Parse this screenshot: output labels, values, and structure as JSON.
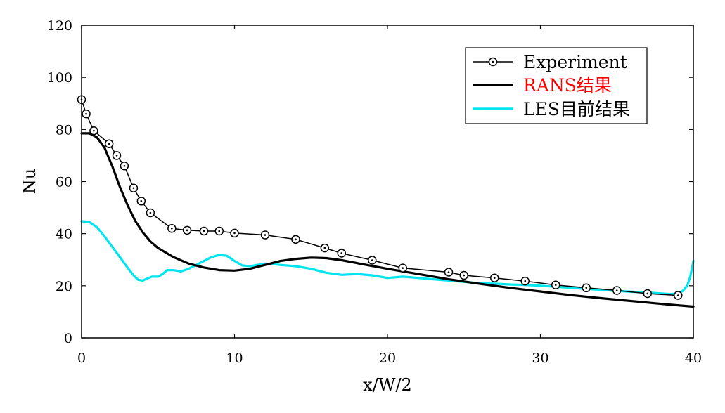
{
  "chart_data": {
    "type": "line",
    "title": "",
    "xlabel": "x/W/2",
    "ylabel": "Nu",
    "xlim": [
      0,
      40
    ],
    "ylim": [
      0,
      120
    ],
    "xticks": [
      "0",
      "10",
      "20",
      "30",
      "40"
    ],
    "yticks": [
      "0",
      "20",
      "40",
      "60",
      "80",
      "100",
      "120"
    ],
    "grid": false,
    "legend_position": "top-right",
    "series": [
      {
        "name": "Experiment",
        "color": "#000000",
        "style": "line-with-circle-markers",
        "x": [
          0,
          0.3,
          0.8,
          1.8,
          2.3,
          2.8,
          3.4,
          3.9,
          4.5,
          5.9,
          6.9,
          8.0,
          9.0,
          10.0,
          12.0,
          14.0,
          15.9,
          17.0,
          19.0,
          21.0,
          24.0,
          25.0,
          27.0,
          29.0,
          31.0,
          33.0,
          35.0,
          37.0,
          39.0
        ],
        "y": [
          91.5,
          86,
          79.5,
          74.5,
          70,
          66,
          57.5,
          52.5,
          48,
          42,
          41.3,
          41,
          41,
          40.2,
          39.5,
          37.8,
          34.5,
          32.5,
          29.8,
          26.8,
          25.2,
          24,
          23,
          21.8,
          20.3,
          19.2,
          18.2,
          17,
          16.3
        ]
      },
      {
        "name": "RANS结果",
        "color": "#000000",
        "label_color": "#ff0000",
        "style": "thick-line",
        "x": [
          0,
          0.5,
          1,
          1.5,
          2,
          2.5,
          3,
          3.5,
          4,
          4.5,
          5,
          6,
          7,
          8,
          9,
          10,
          11,
          12,
          13,
          14,
          15,
          16,
          17,
          18,
          20,
          22,
          24,
          26,
          28,
          30,
          32,
          34,
          36,
          38,
          40
        ],
        "y": [
          78.5,
          78.5,
          77,
          73,
          66,
          58,
          51,
          45,
          40.5,
          37,
          34.5,
          31,
          28.5,
          27,
          26,
          25.8,
          26.5,
          28,
          29.5,
          30.3,
          30.8,
          30.6,
          29.8,
          28.7,
          26.5,
          24.5,
          22.5,
          20.8,
          19.2,
          17.8,
          16.4,
          15.2,
          14.1,
          13,
          12
        ]
      },
      {
        "name": "LES目前结果",
        "color": "#00e5ee",
        "style": "line",
        "x": [
          0,
          0.5,
          1,
          1.5,
          2,
          2.5,
          3,
          3.4,
          3.7,
          4,
          4.3,
          4.6,
          5,
          5.3,
          5.6,
          6,
          6.5,
          7,
          7.5,
          8,
          8.5,
          9,
          9.5,
          10,
          10.5,
          11,
          12,
          13,
          14,
          15,
          16,
          17,
          18,
          19,
          20,
          21,
          22,
          23,
          24,
          25,
          26,
          27,
          28,
          29,
          30,
          31,
          32,
          33,
          34,
          35,
          36,
          37,
          38,
          38.5,
          39,
          39.3,
          39.6,
          39.8,
          40
        ],
        "y": [
          44.8,
          44.5,
          42.5,
          39,
          35,
          31,
          27,
          24,
          22.3,
          22,
          22.8,
          23.5,
          23.5,
          24.5,
          26,
          26,
          25.5,
          26.5,
          28,
          29.5,
          31,
          31.8,
          31.5,
          29.5,
          27.8,
          27.5,
          28.5,
          28,
          27.5,
          26.5,
          25,
          24.2,
          24.5,
          24,
          23,
          23.5,
          23,
          22.5,
          22,
          21.5,
          21,
          20.8,
          20.5,
          20.3,
          20,
          19.6,
          19.2,
          18.8,
          18.4,
          18,
          17.7,
          17.4,
          17,
          16.8,
          17,
          18,
          20,
          23.5,
          29.5
        ]
      }
    ]
  }
}
